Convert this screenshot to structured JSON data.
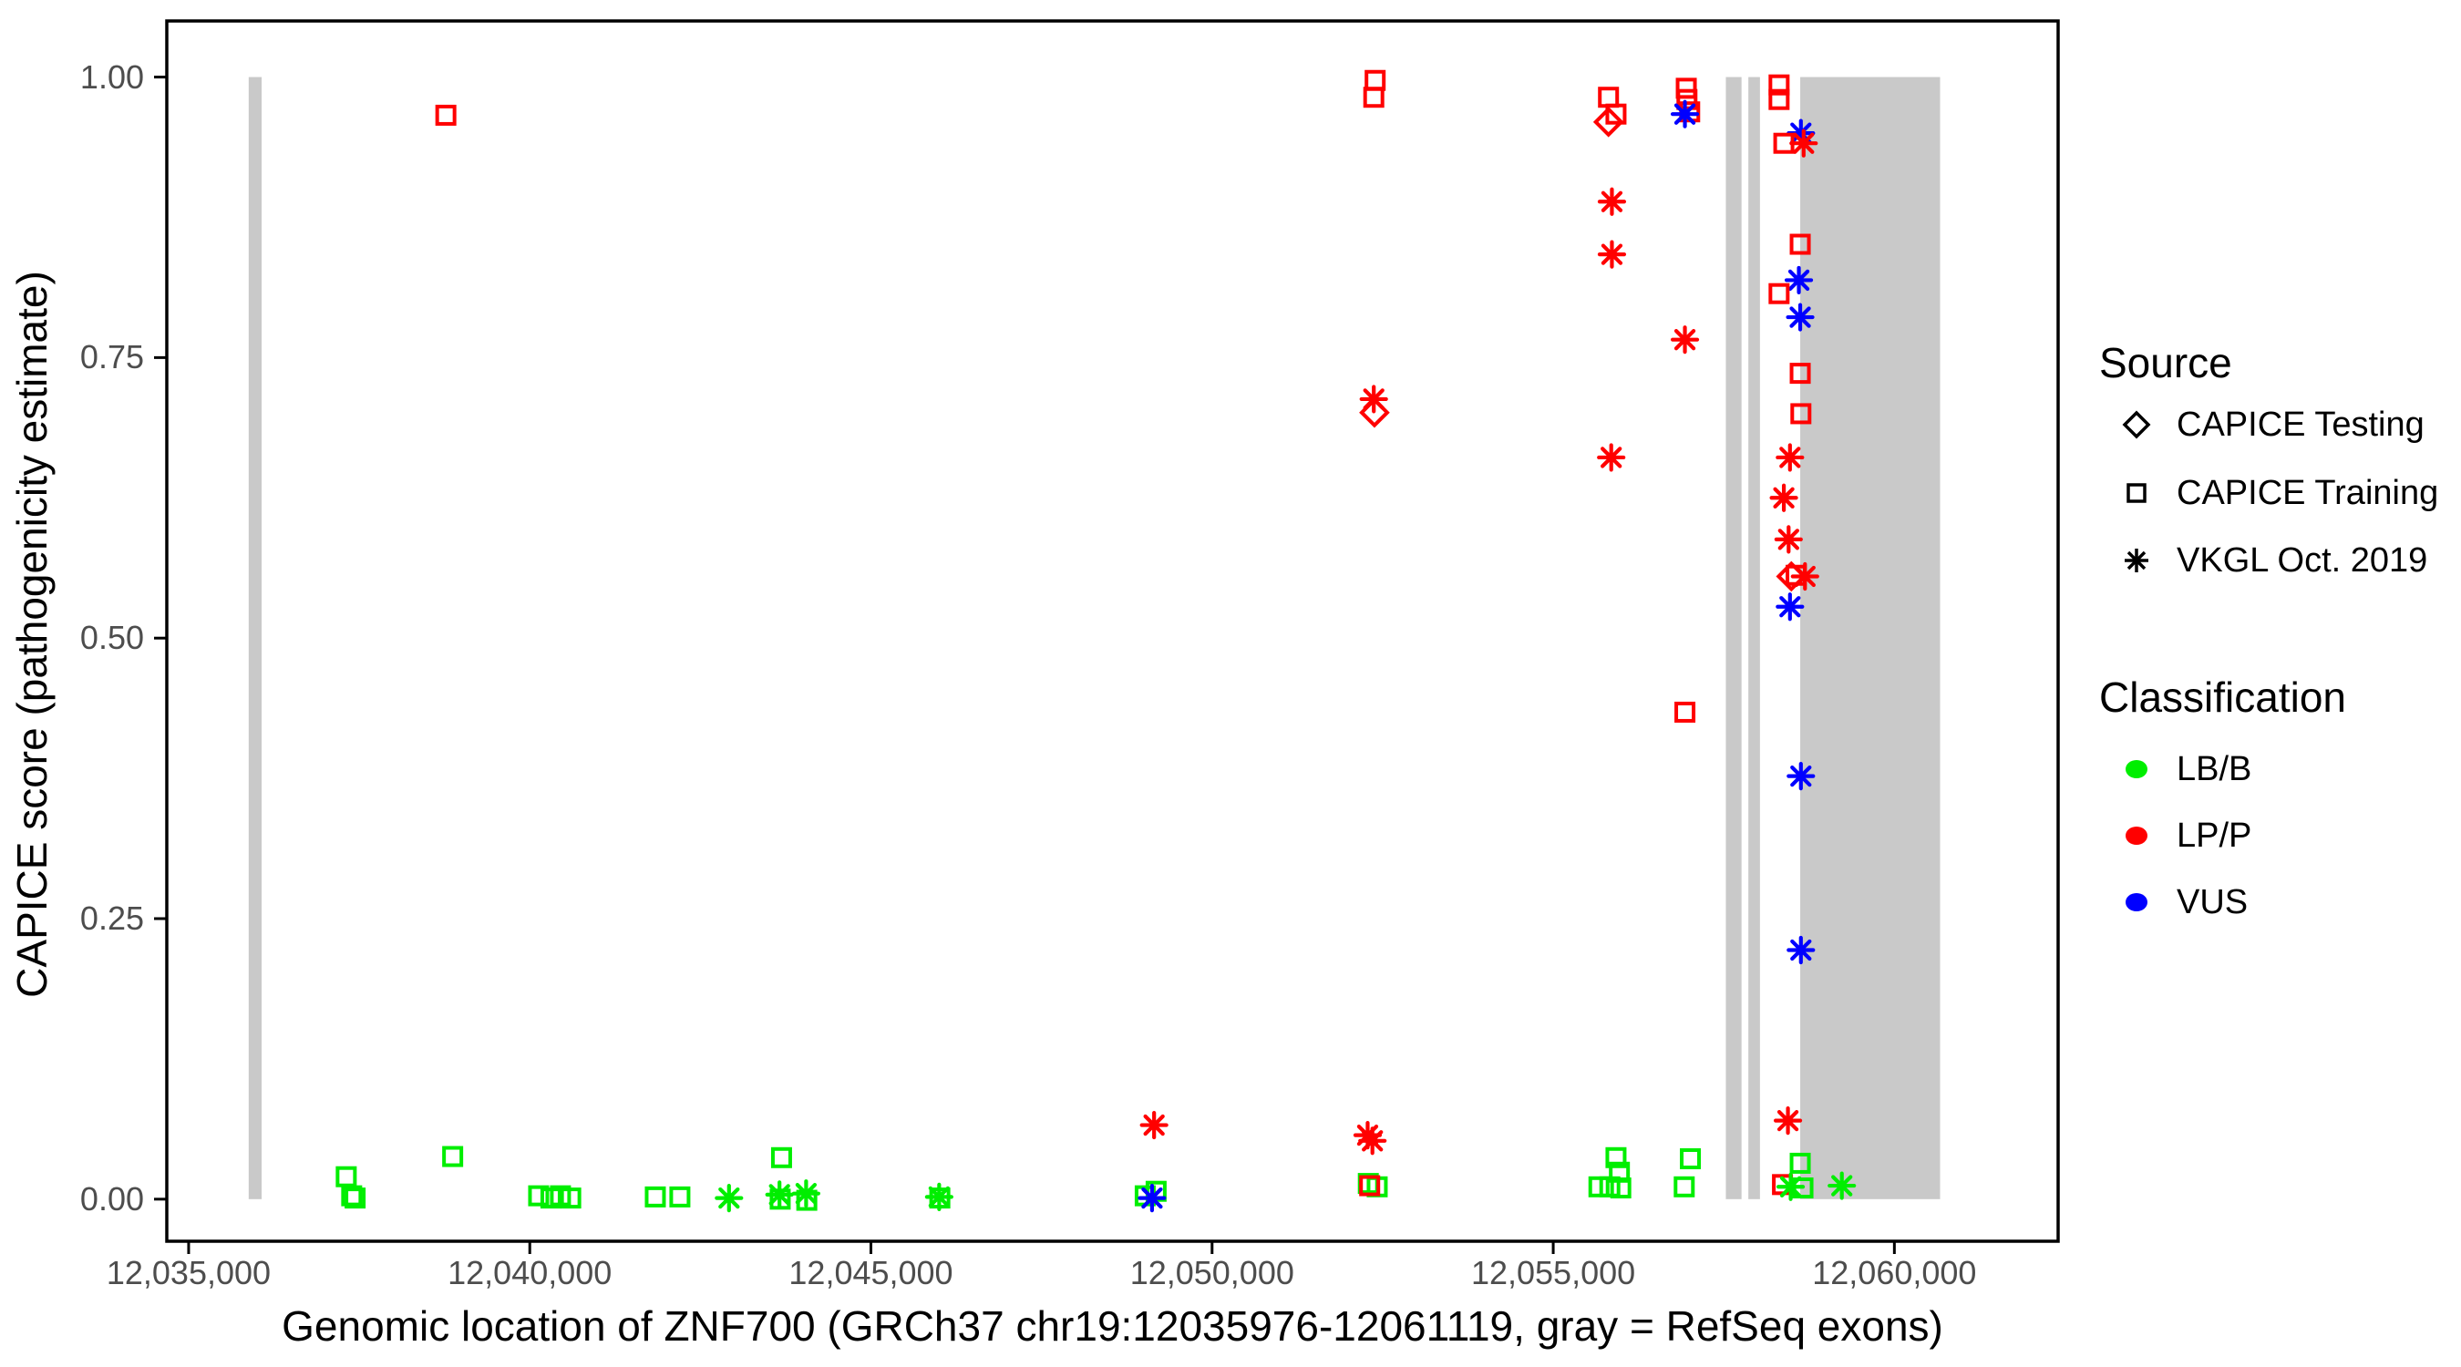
{
  "chart_data": {
    "type": "scatter",
    "title": "",
    "xlabel": "Genomic location of ZNF700 (GRCh37 chr19:12035976-12061119, gray = RefSeq exons)",
    "ylabel": "CAPICE score (pathogenicity estimate)",
    "x_domain": [
      12034680,
      12062400
    ],
    "y_domain": [
      -0.0375,
      1.05
    ],
    "grid": false,
    "legend_position": "right",
    "exon_color": "#C9C9C9",
    "panel_border_color": "#000000",
    "x_ticks": [
      {
        "value": 12035000,
        "label": "12,035,000"
      },
      {
        "value": 12040000,
        "label": "12,040,000"
      },
      {
        "value": 12045000,
        "label": "12,045,000"
      },
      {
        "value": 12050000,
        "label": "12,050,000"
      },
      {
        "value": 12055000,
        "label": "12,055,000"
      },
      {
        "value": 12060000,
        "label": "12,060,000"
      }
    ],
    "y_ticks": [
      {
        "value": 1.0,
        "label": "1.00"
      },
      {
        "value": 0.75,
        "label": "0.75"
      },
      {
        "value": 0.5,
        "label": "0.50"
      },
      {
        "value": 0.25,
        "label": "0.25"
      },
      {
        "value": 0.0,
        "label": "0.00"
      }
    ],
    "series_legend": {
      "source": {
        "title": "Source",
        "items": [
          {
            "key": "testing",
            "symbol": "diamond",
            "label": "CAPICE Testing"
          },
          {
            "key": "training",
            "symbol": "square",
            "label": "CAPICE Training"
          },
          {
            "key": "vkgl",
            "symbol": "asterisk",
            "label": "VKGL Oct. 2019"
          }
        ]
      },
      "classification": {
        "title": "Classification",
        "items": [
          {
            "key": "LB/B",
            "label": "LB/B",
            "color": "#00EE00"
          },
          {
            "key": "LP/P",
            "label": "LP/P",
            "color": "#FF0000"
          },
          {
            "key": "VUS",
            "label": "VUS",
            "color": "#0000FF"
          }
        ]
      }
    },
    "exons": [
      {
        "start": 12035880,
        "end": 12036070
      },
      {
        "start": 12057530,
        "end": 12057760
      },
      {
        "start": 12057860,
        "end": 12058030
      },
      {
        "start": 12058620,
        "end": 12060670
      }
    ],
    "points": [
      {
        "x": 12037310,
        "y": 0.02,
        "s": "training",
        "c": "LB/B"
      },
      {
        "x": 12037390,
        "y": 0.003,
        "s": "training",
        "c": "LB/B"
      },
      {
        "x": 12037440,
        "y": 0.001,
        "s": "training",
        "c": "LB/B"
      },
      {
        "x": 12038770,
        "y": 0.966,
        "s": "training",
        "c": "LP/P"
      },
      {
        "x": 12038870,
        "y": 0.038,
        "s": "training",
        "c": "LB/B"
      },
      {
        "x": 12040130,
        "y": 0.003,
        "s": "training",
        "c": "LB/B"
      },
      {
        "x": 12040310,
        "y": 0.001,
        "s": "training",
        "c": "LB/B"
      },
      {
        "x": 12040450,
        "y": 0.003,
        "s": "training",
        "c": "LB/B"
      },
      {
        "x": 12040600,
        "y": 0.001,
        "s": "training",
        "c": "LB/B"
      },
      {
        "x": 12041840,
        "y": 0.002,
        "s": "training",
        "c": "LB/B"
      },
      {
        "x": 12042200,
        "y": 0.002,
        "s": "training",
        "c": "LB/B"
      },
      {
        "x": 12042920,
        "y": 0.001,
        "s": "vkgl",
        "c": "LB/B"
      },
      {
        "x": 12043690,
        "y": 0.037,
        "s": "training",
        "c": "LB/B"
      },
      {
        "x": 12043660,
        "y": 0.004,
        "s": "vkgl",
        "c": "LB/B"
      },
      {
        "x": 12043670,
        "y": 0.0,
        "s": "training",
        "c": "LB/B"
      },
      {
        "x": 12044050,
        "y": 0.005,
        "s": "vkgl",
        "c": "LB/B"
      },
      {
        "x": 12044060,
        "y": -0.001,
        "s": "training",
        "c": "LB/B"
      },
      {
        "x": 12046000,
        "y": 0.002,
        "s": "vkgl",
        "c": "LB/B"
      },
      {
        "x": 12046010,
        "y": 0.001,
        "s": "training",
        "c": "LB/B"
      },
      {
        "x": 12049150,
        "y": 0.066,
        "s": "vkgl",
        "c": "LP/P"
      },
      {
        "x": 12049180,
        "y": 0.007,
        "s": "training",
        "c": "LB/B"
      },
      {
        "x": 12049020,
        "y": 0.003,
        "s": "training",
        "c": "LB/B"
      },
      {
        "x": 12049120,
        "y": 0.001,
        "s": "vkgl",
        "c": "VUS"
      },
      {
        "x": 12052390,
        "y": 0.997,
        "s": "training",
        "c": "LP/P"
      },
      {
        "x": 12052370,
        "y": 0.982,
        "s": "training",
        "c": "LP/P"
      },
      {
        "x": 12052370,
        "y": 0.713,
        "s": "vkgl",
        "c": "LP/P"
      },
      {
        "x": 12052380,
        "y": 0.701,
        "s": "testing",
        "c": "LP/P"
      },
      {
        "x": 12052280,
        "y": 0.057,
        "s": "vkgl",
        "c": "LP/P"
      },
      {
        "x": 12052350,
        "y": 0.052,
        "s": "vkgl",
        "c": "LP/P"
      },
      {
        "x": 12052290,
        "y": 0.014,
        "s": "training",
        "c": "LB/B"
      },
      {
        "x": 12052420,
        "y": 0.011,
        "s": "training",
        "c": "LB/B"
      },
      {
        "x": 12052310,
        "y": 0.012,
        "s": "training",
        "c": "LP/P"
      },
      {
        "x": 12055810,
        "y": 0.982,
        "s": "training",
        "c": "LP/P"
      },
      {
        "x": 12055920,
        "y": 0.967,
        "s": "training",
        "c": "LP/P"
      },
      {
        "x": 12055810,
        "y": 0.96,
        "s": "testing",
        "c": "LP/P"
      },
      {
        "x": 12055860,
        "y": 0.889,
        "s": "vkgl",
        "c": "LP/P"
      },
      {
        "x": 12055860,
        "y": 0.842,
        "s": "vkgl",
        "c": "LP/P"
      },
      {
        "x": 12055850,
        "y": 0.661,
        "s": "vkgl",
        "c": "LP/P"
      },
      {
        "x": 12055920,
        "y": 0.037,
        "s": "training",
        "c": "LB/B"
      },
      {
        "x": 12055970,
        "y": 0.024,
        "s": "training",
        "c": "LB/B"
      },
      {
        "x": 12055670,
        "y": 0.011,
        "s": "training",
        "c": "LB/B"
      },
      {
        "x": 12055830,
        "y": 0.011,
        "s": "training",
        "c": "LB/B"
      },
      {
        "x": 12055990,
        "y": 0.01,
        "s": "training",
        "c": "LB/B"
      },
      {
        "x": 12056950,
        "y": 0.99,
        "s": "training",
        "c": "LP/P"
      },
      {
        "x": 12056960,
        "y": 0.98,
        "s": "training",
        "c": "LP/P"
      },
      {
        "x": 12057000,
        "y": 0.969,
        "s": "training",
        "c": "LP/P"
      },
      {
        "x": 12056930,
        "y": 0.967,
        "s": "vkgl",
        "c": "VUS"
      },
      {
        "x": 12056930,
        "y": 0.766,
        "s": "vkgl",
        "c": "LP/P"
      },
      {
        "x": 12056930,
        "y": 0.434,
        "s": "training",
        "c": "LP/P"
      },
      {
        "x": 12057010,
        "y": 0.036,
        "s": "training",
        "c": "LB/B"
      },
      {
        "x": 12056920,
        "y": 0.011,
        "s": "training",
        "c": "LB/B"
      },
      {
        "x": 12058310,
        "y": 0.993,
        "s": "training",
        "c": "LP/P"
      },
      {
        "x": 12058310,
        "y": 0.98,
        "s": "training",
        "c": "LP/P"
      },
      {
        "x": 12058630,
        "y": 0.95,
        "s": "vkgl",
        "c": "VUS"
      },
      {
        "x": 12058380,
        "y": 0.941,
        "s": "training",
        "c": "LP/P"
      },
      {
        "x": 12058670,
        "y": 0.941,
        "s": "vkgl",
        "c": "LP/P"
      },
      {
        "x": 12058620,
        "y": 0.851,
        "s": "training",
        "c": "LP/P"
      },
      {
        "x": 12058600,
        "y": 0.819,
        "s": "vkgl",
        "c": "VUS"
      },
      {
        "x": 12058310,
        "y": 0.807,
        "s": "training",
        "c": "LP/P"
      },
      {
        "x": 12058620,
        "y": 0.786,
        "s": "vkgl",
        "c": "VUS"
      },
      {
        "x": 12058620,
        "y": 0.736,
        "s": "training",
        "c": "LP/P"
      },
      {
        "x": 12058630,
        "y": 0.7,
        "s": "training",
        "c": "LP/P"
      },
      {
        "x": 12058470,
        "y": 0.661,
        "s": "vkgl",
        "c": "LP/P"
      },
      {
        "x": 12058380,
        "y": 0.625,
        "s": "vkgl",
        "c": "LP/P"
      },
      {
        "x": 12058450,
        "y": 0.588,
        "s": "vkgl",
        "c": "LP/P"
      },
      {
        "x": 12058490,
        "y": 0.555,
        "s": "testing",
        "c": "LP/P"
      },
      {
        "x": 12058560,
        "y": 0.556,
        "s": "training",
        "c": "LP/P"
      },
      {
        "x": 12058690,
        "y": 0.555,
        "s": "vkgl",
        "c": "LP/P"
      },
      {
        "x": 12058470,
        "y": 0.528,
        "s": "vkgl",
        "c": "VUS"
      },
      {
        "x": 12058630,
        "y": 0.377,
        "s": "vkgl",
        "c": "VUS"
      },
      {
        "x": 12058630,
        "y": 0.222,
        "s": "vkgl",
        "c": "VUS"
      },
      {
        "x": 12058440,
        "y": 0.07,
        "s": "vkgl",
        "c": "LP/P"
      },
      {
        "x": 12058620,
        "y": 0.032,
        "s": "training",
        "c": "LB/B"
      },
      {
        "x": 12058360,
        "y": 0.013,
        "s": "training",
        "c": "LP/P"
      },
      {
        "x": 12058480,
        "y": 0.011,
        "s": "vkgl",
        "c": "LB/B"
      },
      {
        "x": 12058660,
        "y": 0.01,
        "s": "training",
        "c": "LB/B"
      },
      {
        "x": 12059230,
        "y": 0.012,
        "s": "vkgl",
        "c": "LB/B"
      }
    ]
  }
}
